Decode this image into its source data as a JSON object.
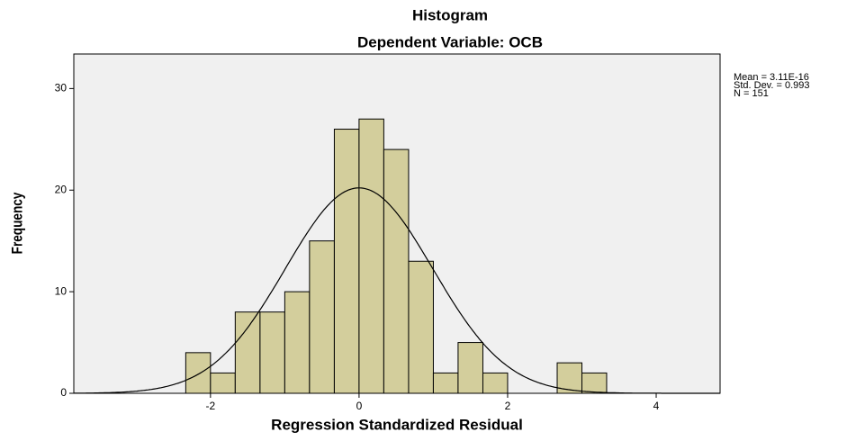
{
  "chart_data": {
    "type": "histogram",
    "title": "Histogram",
    "subtitle": "Dependent Variable: OCB",
    "x_label": "Regression Standardized Residual",
    "y_label": "Frequency",
    "bins": [
      -2.333,
      -2,
      -1.667,
      -1.333,
      -1,
      -0.667,
      -0.333,
      0,
      0.333,
      0.667,
      1,
      1.333,
      1.667,
      2,
      2.333,
      2.667,
      3,
      3.333
    ],
    "values": [
      4,
      2,
      8,
      8,
      10,
      15,
      26,
      27,
      24,
      13,
      2,
      5,
      2,
      0,
      0,
      3,
      2
    ],
    "color": "#d3ce9c",
    "xlim": [
      -3.84,
      4.86
    ],
    "xticks": [
      -2,
      0,
      2,
      4
    ],
    "ylim": [
      0,
      33.4
    ],
    "yticks": [
      0,
      10,
      20,
      30
    ],
    "normal_curve": true,
    "stats": [
      {
        "label": "Mean = 3.11E-16",
        "value": 3.11e-16
      },
      {
        "label": "Std. Dev. = 0.993",
        "value": 0.993
      },
      {
        "label": "N = 151",
        "value": 151
      }
    ]
  }
}
